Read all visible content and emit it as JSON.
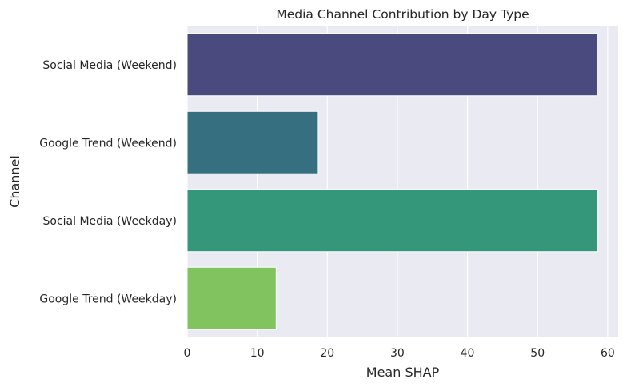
{
  "chart_data": {
    "type": "bar",
    "orientation": "horizontal",
    "title": "Media Channel Contribution by Day Type",
    "xlabel": "Mean SHAP",
    "ylabel": "Channel",
    "categories": [
      "Social Media (Weekend)",
      "Google Trend (Weekend)",
      "Social Media (Weekday)",
      "Google Trend (Weekday)"
    ],
    "values": [
      58.5,
      18.7,
      58.6,
      12.7
    ],
    "colors": [
      "#4a4a7f",
      "#367080",
      "#35977a",
      "#80c35f"
    ],
    "xlim": [
      0,
      61.5
    ],
    "xticks": [
      0,
      10,
      20,
      30,
      40,
      50,
      60
    ],
    "grid": true,
    "legend": "none",
    "style": {
      "background": "#eaeaf2",
      "grid_color": "#ffffff"
    }
  }
}
